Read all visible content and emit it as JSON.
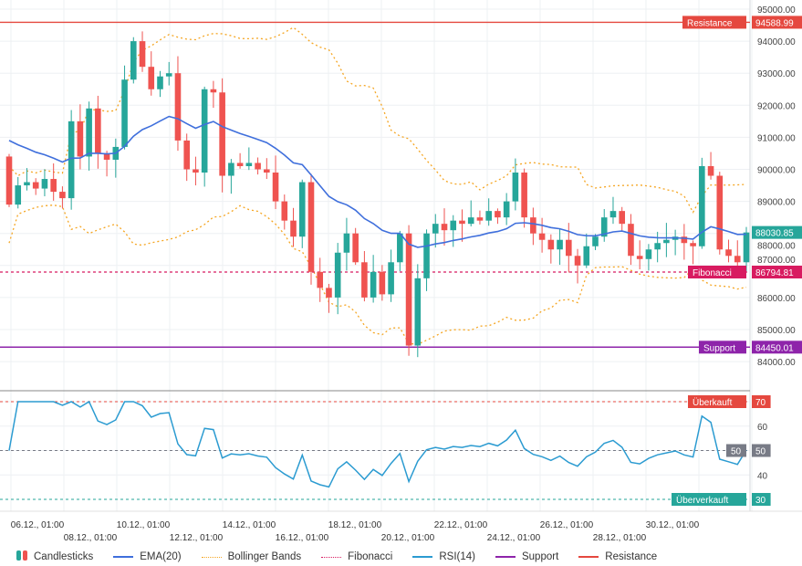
{
  "chart_data": {
    "type": "candlestick",
    "price_axis": {
      "ticks": [
        95000,
        94000,
        93000,
        92000,
        91000,
        90000,
        89000,
        88000,
        87000,
        86000,
        85000,
        84000
      ],
      "range": [
        83900,
        95200
      ]
    },
    "rsi_axis": {
      "ticks": [
        40,
        50,
        60,
        70
      ],
      "range": [
        26,
        74
      ]
    },
    "x_labels": [
      "06.12., 01:00",
      "08.12., 01:00",
      "10.12., 01:00",
      "12.12., 01:00",
      "14.12., 01:00",
      "16.12., 01:00",
      "18.12., 01:00",
      "20.12., 01:00",
      "22.12., 01:00",
      "24.12., 01:00",
      "26.12., 01:00",
      "28.12., 01:00",
      "30.12., 01:00"
    ],
    "first_open": 90400,
    "closes": [
      88900,
      89500,
      89600,
      89400,
      89700,
      89300,
      89100,
      91500,
      90400,
      91900,
      90500,
      90300,
      90700,
      92800,
      94000,
      93200,
      92500,
      92900,
      93000,
      90900,
      90000,
      89900,
      92500,
      92400,
      89800,
      90200,
      90100,
      90200,
      90000,
      89900,
      89000,
      88400,
      87900,
      89600,
      86800,
      86300,
      86000,
      87400,
      88000,
      87100,
      86000,
      86800,
      86100,
      87100,
      88000,
      84500,
      86600,
      88000,
      88300,
      88100,
      88400,
      88300,
      88500,
      88400,
      88700,
      88500,
      89000,
      89900,
      88500,
      88000,
      87800,
      87500,
      87800,
      87300,
      87000,
      87600,
      87900,
      88500,
      88700,
      88300,
      87300,
      87200,
      87500,
      87700,
      87800,
      87900,
      87700,
      87600,
      90100,
      89800,
      87500,
      87300,
      87100,
      88030
    ],
    "levels": {
      "resistance": {
        "label": "Resistance",
        "value": "94588.99",
        "price": 94588.99,
        "color": "#e5483f"
      },
      "fibonacci": {
        "label": "Fibonacci",
        "value": "86794.81",
        "price": 86794.81,
        "color": "#d81b60"
      },
      "support": {
        "label": "Support",
        "value": "84450.01",
        "price": 84450.01,
        "color": "#8e24aa"
      },
      "last": {
        "value": "88030.85",
        "price": 88030.85,
        "color": "#26a69a"
      }
    },
    "rsi_levels": {
      "overbought": {
        "label": "Überkauft",
        "value": "70",
        "level": 70,
        "color": "#e5483f"
      },
      "mid": {
        "label": "50",
        "value": "50",
        "level": 50,
        "color": "#787b86"
      },
      "oversold": {
        "label": "Überverkauft",
        "value": "30",
        "level": 30,
        "color": "#26a69a"
      }
    },
    "colors": {
      "up": "#26a69a",
      "down": "#ef5350",
      "ema": "#3f6fdc",
      "bb": "#f5a623",
      "rsi": "#2b9bd1"
    },
    "legend": [
      {
        "label": "Candlesticks",
        "kind": "candle"
      },
      {
        "label": "EMA(20)",
        "kind": "line",
        "color": "#3f6fdc"
      },
      {
        "label": "Bollinger Bands",
        "kind": "dot",
        "color": "#f5a623"
      },
      {
        "label": "Fibonacci",
        "kind": "dot",
        "color": "#d81b60"
      },
      {
        "label": "RSI(14)",
        "kind": "line",
        "color": "#2b9bd1"
      },
      {
        "label": "Support",
        "kind": "line",
        "color": "#8e24aa"
      },
      {
        "label": "Resistance",
        "kind": "line",
        "color": "#e5483f"
      }
    ]
  }
}
